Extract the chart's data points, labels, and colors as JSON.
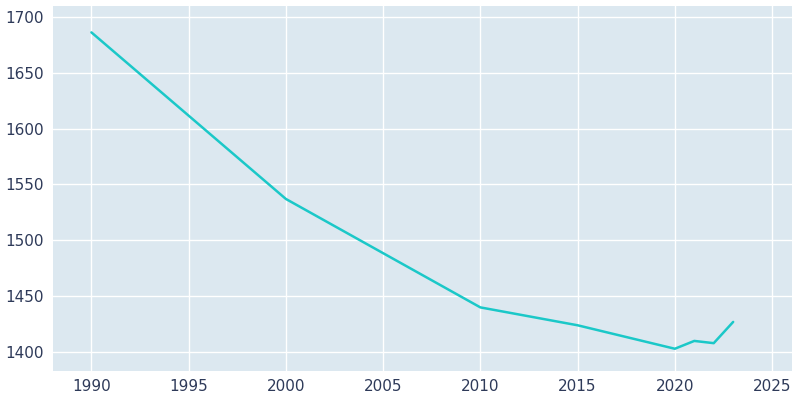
{
  "years": [
    1990,
    2000,
    2010,
    2015,
    2020,
    2021,
    2022,
    2023
  ],
  "population": [
    1686,
    1537,
    1440,
    1424,
    1403,
    1410,
    1408,
    1427
  ],
  "line_color": "#1bc8c8",
  "fig_background_color": "#ffffff",
  "plot_background_color": "#dce8f0",
  "grid_color": "#ffffff",
  "tick_color": "#2e3a59",
  "xlim": [
    1988,
    2026
  ],
  "ylim": [
    1383,
    1710
  ],
  "xticks": [
    1990,
    1995,
    2000,
    2005,
    2010,
    2015,
    2020,
    2025
  ],
  "yticks": [
    1400,
    1450,
    1500,
    1550,
    1600,
    1650,
    1700
  ],
  "line_width": 1.8,
  "figsize": [
    8.0,
    4.0
  ],
  "dpi": 100
}
